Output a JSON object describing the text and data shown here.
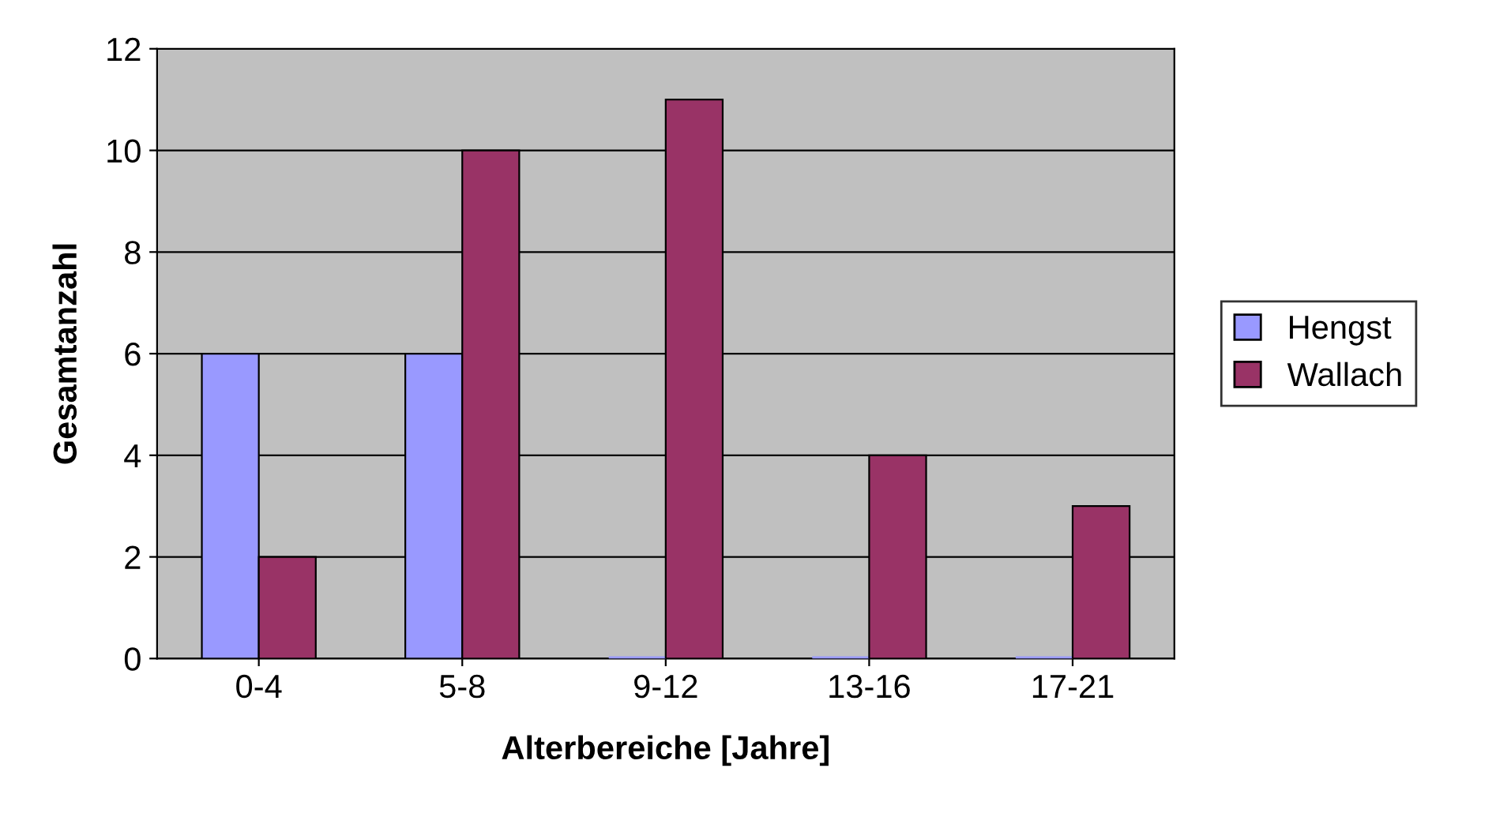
{
  "chart_data": {
    "type": "bar",
    "xlabel": "Alterbereiche [Jahre]",
    "ylabel": "Gesamtanzahl",
    "categories": [
      "0-4",
      "5-8",
      "9-12",
      "13-16",
      "17-21"
    ],
    "series": [
      {
        "name": "Hengst",
        "color": "#9999ff",
        "values": [
          6,
          6,
          0,
          0,
          0
        ]
      },
      {
        "name": "Wallach",
        "color": "#993366",
        "values": [
          2,
          10,
          11,
          4,
          3
        ]
      }
    ],
    "ylim": [
      0,
      12
    ],
    "yticks": [
      0,
      2,
      4,
      6,
      8,
      10,
      12
    ],
    "grid": "y",
    "legend": "right"
  }
}
